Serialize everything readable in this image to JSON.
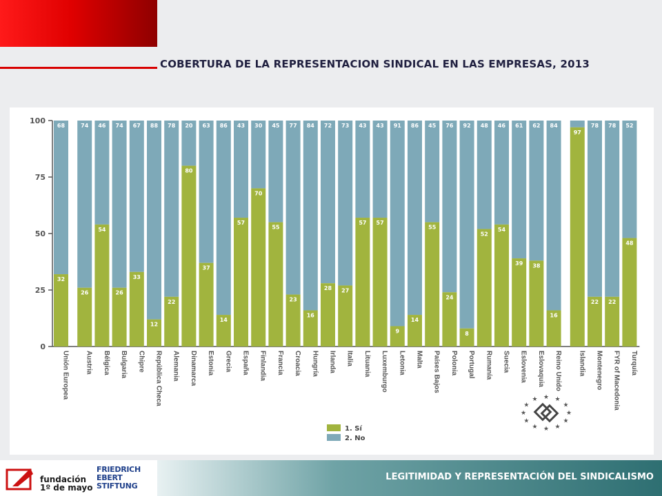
{
  "header": {
    "title": "COBERTURA DE LA REPRESENTACION SINDICAL EN LAS EMPRESAS, 2013"
  },
  "footer": {
    "caption": "LEGITIMIDAD Y REPRESENTACIÓN DEL SINDICALISMO",
    "logo_left_line1": "fundación",
    "logo_left_line2": "1º de mayo",
    "logo_right_line1": "FRIEDRICH",
    "logo_right_line2": "EBERT",
    "logo_right_line3": "STIFTUNG"
  },
  "colors": {
    "si": "#a1b43e",
    "no": "#7ea9b8",
    "red_accent": "#d80000",
    "footer_teal": "#2e6f72"
  },
  "chart_data": {
    "type": "bar",
    "stacked": true,
    "orientation": "vertical",
    "title": "",
    "xlabel": "",
    "ylabel": "",
    "ylim": [
      0,
      100
    ],
    "yticks": [
      0,
      25,
      50,
      75,
      100
    ],
    "grid": false,
    "legend_position": "bottom-right",
    "categories": [
      "Unión Europea",
      "Austria",
      "Bélgica",
      "Bulgaria",
      "Chipre",
      "República Checa",
      "Alemania",
      "Dinamarca",
      "Estonia",
      "Grecia",
      "España",
      "Finlandia",
      "Francia",
      "Croacia",
      "Hungría",
      "Irlanda",
      "Italia",
      "Lituania",
      "Luxemburgo",
      "Letonia",
      "Malta",
      "Países Bajos",
      "Polonia",
      "Portugal",
      "Rumanía",
      "Suecia",
      "Eslovenia",
      "Eslovaquia",
      "Reino Unido",
      "Islandia",
      "Montenegro",
      "FYR of Macedonia",
      "Turquía"
    ],
    "group_breaks_after": [
      "Unión Europea",
      "Reino Unido"
    ],
    "series": [
      {
        "name": "1. Sí",
        "values": [
          32,
          26,
          54,
          26,
          33,
          12,
          22,
          80,
          37,
          14,
          57,
          70,
          55,
          23,
          16,
          28,
          27,
          57,
          57,
          9,
          14,
          55,
          24,
          8,
          52,
          54,
          39,
          38,
          16,
          97,
          22,
          22,
          48
        ]
      },
      {
        "name": "2. No",
        "values": [
          68,
          74,
          46,
          74,
          67,
          88,
          78,
          20,
          63,
          86,
          43,
          30,
          45,
          77,
          84,
          72,
          73,
          43,
          43,
          91,
          86,
          45,
          76,
          92,
          48,
          46,
          61,
          62,
          84,
          null,
          78,
          78,
          52
        ]
      }
    ]
  }
}
